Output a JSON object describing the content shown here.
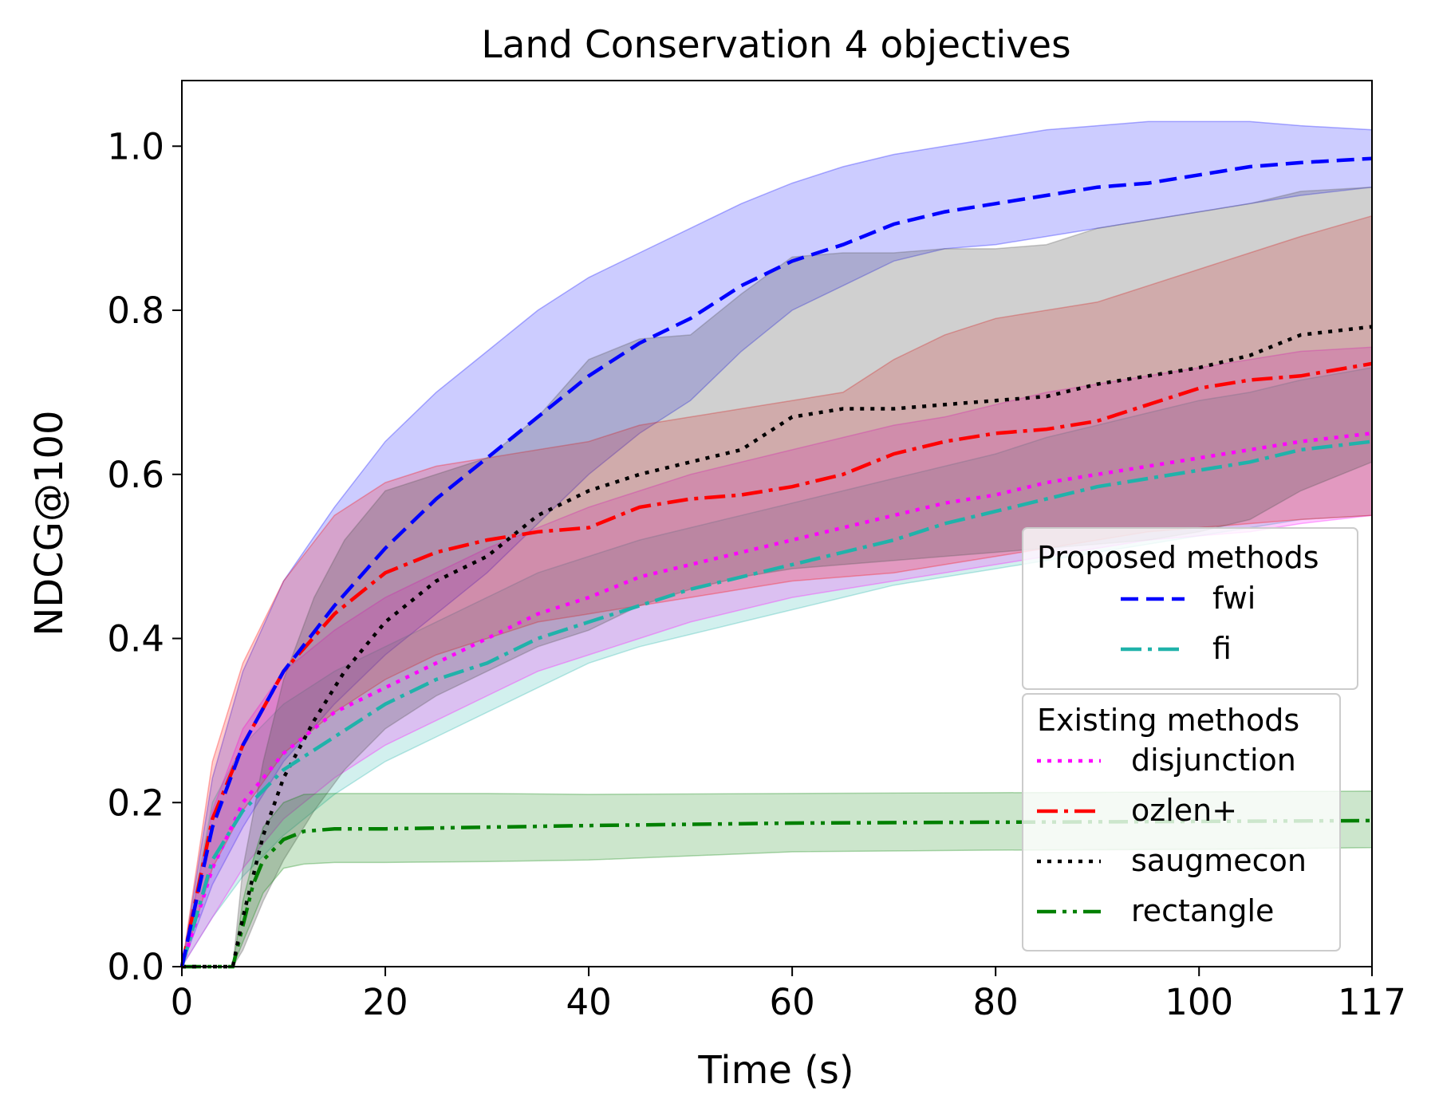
{
  "chart_data": {
    "type": "line",
    "title": "Land Conservation 4 objectives",
    "xlabel": "Time (s)",
    "ylabel": "NDCG@100",
    "xlim": [
      0,
      117
    ],
    "ylim": [
      0,
      1.08
    ],
    "x_ticks": [
      0,
      20,
      40,
      60,
      80,
      100,
      117
    ],
    "y_ticks": [
      0.0,
      0.2,
      0.4,
      0.6,
      0.8,
      1.0
    ],
    "x_tick_labels": [
      "0",
      "20",
      "40",
      "60",
      "80",
      "100",
      "117"
    ],
    "y_tick_labels": [
      "0.0",
      "0.2",
      "0.4",
      "0.6",
      "0.8",
      "1.0"
    ],
    "grid": false,
    "legend_position": "lower-right",
    "legend_groups": [
      {
        "title": "Proposed methods",
        "entries": [
          "fwi",
          "fi"
        ]
      },
      {
        "title": "Existing methods",
        "entries": [
          "disjunction",
          "ozlen+",
          "saugmecon",
          "rectangle"
        ]
      }
    ],
    "series": [
      {
        "name": "fwi",
        "color": "#0000ff",
        "band_color": "#0000ff",
        "band_opacity": 0.2,
        "dash": "dashed",
        "x": [
          0,
          3,
          6,
          10,
          15,
          20,
          25,
          30,
          35,
          40,
          45,
          50,
          55,
          60,
          65,
          70,
          75,
          80,
          85,
          90,
          95,
          100,
          105,
          110,
          117
        ],
        "y": [
          0.0,
          0.17,
          0.27,
          0.36,
          0.44,
          0.51,
          0.57,
          0.62,
          0.67,
          0.72,
          0.76,
          0.79,
          0.83,
          0.86,
          0.88,
          0.905,
          0.92,
          0.93,
          0.94,
          0.95,
          0.955,
          0.965,
          0.975,
          0.98,
          0.985
        ],
        "lower": [
          0.0,
          0.1,
          0.17,
          0.25,
          0.32,
          0.38,
          0.43,
          0.48,
          0.54,
          0.6,
          0.65,
          0.69,
          0.75,
          0.8,
          0.83,
          0.86,
          0.875,
          0.88,
          0.89,
          0.9,
          0.91,
          0.92,
          0.93,
          0.94,
          0.95
        ],
        "upper": [
          0.0,
          0.23,
          0.36,
          0.47,
          0.56,
          0.64,
          0.7,
          0.75,
          0.8,
          0.84,
          0.87,
          0.9,
          0.93,
          0.955,
          0.975,
          0.99,
          1.0,
          1.01,
          1.02,
          1.025,
          1.03,
          1.03,
          1.03,
          1.025,
          1.02
        ]
      },
      {
        "name": "fi",
        "color": "#20b2aa",
        "band_color": "#20b2aa",
        "band_opacity": 0.2,
        "dash": "dashdot",
        "x": [
          0,
          3,
          6,
          10,
          15,
          20,
          25,
          30,
          35,
          40,
          45,
          50,
          55,
          60,
          65,
          70,
          75,
          80,
          85,
          90,
          95,
          100,
          105,
          110,
          117
        ],
        "y": [
          0.0,
          0.13,
          0.19,
          0.24,
          0.28,
          0.32,
          0.35,
          0.37,
          0.4,
          0.42,
          0.44,
          0.46,
          0.475,
          0.49,
          0.505,
          0.52,
          0.54,
          0.555,
          0.57,
          0.585,
          0.595,
          0.605,
          0.615,
          0.63,
          0.64
        ],
        "lower": [
          0.0,
          0.06,
          0.11,
          0.16,
          0.21,
          0.25,
          0.28,
          0.31,
          0.34,
          0.37,
          0.39,
          0.405,
          0.42,
          0.435,
          0.45,
          0.465,
          0.475,
          0.485,
          0.495,
          0.505,
          0.515,
          0.525,
          0.535,
          0.545,
          0.55
        ],
        "upper": [
          0.0,
          0.2,
          0.27,
          0.32,
          0.36,
          0.39,
          0.42,
          0.45,
          0.48,
          0.5,
          0.52,
          0.535,
          0.55,
          0.565,
          0.58,
          0.595,
          0.61,
          0.625,
          0.645,
          0.66,
          0.675,
          0.69,
          0.7,
          0.715,
          0.73
        ]
      },
      {
        "name": "disjunction",
        "color": "#ff00ff",
        "band_color": "#ff00ff",
        "band_opacity": 0.2,
        "dash": "dotted",
        "x": [
          0,
          3,
          6,
          10,
          15,
          20,
          25,
          30,
          35,
          40,
          45,
          50,
          55,
          60,
          65,
          70,
          75,
          80,
          85,
          90,
          95,
          100,
          105,
          110,
          117
        ],
        "y": [
          0.0,
          0.12,
          0.2,
          0.26,
          0.31,
          0.34,
          0.37,
          0.4,
          0.43,
          0.45,
          0.475,
          0.49,
          0.505,
          0.52,
          0.535,
          0.55,
          0.565,
          0.575,
          0.59,
          0.6,
          0.61,
          0.62,
          0.63,
          0.64,
          0.65
        ],
        "lower": [
          0.0,
          0.06,
          0.12,
          0.18,
          0.23,
          0.27,
          0.3,
          0.33,
          0.36,
          0.38,
          0.4,
          0.42,
          0.435,
          0.45,
          0.46,
          0.47,
          0.48,
          0.49,
          0.5,
          0.51,
          0.52,
          0.525,
          0.53,
          0.54,
          0.55
        ],
        "upper": [
          0.0,
          0.19,
          0.29,
          0.36,
          0.41,
          0.45,
          0.48,
          0.51,
          0.535,
          0.56,
          0.58,
          0.6,
          0.615,
          0.63,
          0.645,
          0.66,
          0.67,
          0.685,
          0.7,
          0.71,
          0.72,
          0.73,
          0.74,
          0.75,
          0.755
        ]
      },
      {
        "name": "ozlen+",
        "color": "#ff0000",
        "band_color": "#ff0000",
        "band_opacity": 0.2,
        "dash": "dashdot",
        "x": [
          0,
          3,
          6,
          10,
          15,
          20,
          25,
          30,
          35,
          40,
          45,
          50,
          55,
          60,
          65,
          70,
          75,
          80,
          85,
          90,
          95,
          100,
          105,
          110,
          117
        ],
        "y": [
          0.0,
          0.18,
          0.27,
          0.36,
          0.43,
          0.48,
          0.505,
          0.52,
          0.53,
          0.535,
          0.56,
          0.57,
          0.575,
          0.585,
          0.6,
          0.625,
          0.64,
          0.65,
          0.655,
          0.665,
          0.685,
          0.705,
          0.715,
          0.72,
          0.735
        ],
        "lower": [
          0.0,
          0.12,
          0.19,
          0.26,
          0.31,
          0.35,
          0.38,
          0.4,
          0.42,
          0.43,
          0.44,
          0.45,
          0.46,
          0.47,
          0.475,
          0.48,
          0.49,
          0.5,
          0.51,
          0.52,
          0.53,
          0.535,
          0.54,
          0.545,
          0.55
        ],
        "upper": [
          0.0,
          0.25,
          0.37,
          0.47,
          0.55,
          0.59,
          0.61,
          0.62,
          0.63,
          0.64,
          0.66,
          0.67,
          0.68,
          0.69,
          0.7,
          0.74,
          0.77,
          0.79,
          0.8,
          0.81,
          0.83,
          0.85,
          0.87,
          0.89,
          0.915
        ]
      },
      {
        "name": "saugmecon",
        "color": "#000000",
        "band_color": "#555555",
        "band_opacity": 0.28,
        "dash": "dotted",
        "x": [
          0,
          4,
          5,
          6,
          8,
          10,
          13,
          16,
          20,
          25,
          30,
          35,
          40,
          45,
          50,
          55,
          60,
          65,
          70,
          75,
          80,
          85,
          90,
          95,
          100,
          105,
          110,
          117
        ],
        "y": [
          0.0,
          0.0,
          0.0,
          0.06,
          0.16,
          0.23,
          0.3,
          0.36,
          0.42,
          0.47,
          0.5,
          0.55,
          0.58,
          0.6,
          0.615,
          0.63,
          0.67,
          0.68,
          0.68,
          0.685,
          0.69,
          0.695,
          0.71,
          0.72,
          0.73,
          0.745,
          0.77,
          0.78
        ],
        "lower": [
          0.0,
          0.0,
          0.0,
          0.02,
          0.08,
          0.13,
          0.19,
          0.24,
          0.29,
          0.33,
          0.36,
          0.39,
          0.41,
          0.44,
          0.46,
          0.475,
          0.485,
          0.49,
          0.495,
          0.5,
          0.505,
          0.51,
          0.515,
          0.52,
          0.53,
          0.545,
          0.58,
          0.615
        ],
        "upper": [
          0.0,
          0.0,
          0.0,
          0.12,
          0.25,
          0.35,
          0.45,
          0.52,
          0.58,
          0.6,
          0.62,
          0.67,
          0.74,
          0.765,
          0.77,
          0.82,
          0.865,
          0.87,
          0.87,
          0.875,
          0.875,
          0.88,
          0.9,
          0.91,
          0.92,
          0.93,
          0.945,
          0.95
        ]
      },
      {
        "name": "rectangle",
        "color": "#008000",
        "band_color": "#008000",
        "band_opacity": 0.2,
        "dash": "dashdotdot",
        "x": [
          0,
          4,
          5,
          6,
          7,
          8,
          10,
          12,
          15,
          20,
          30,
          40,
          60,
          80,
          100,
          117
        ],
        "y": [
          0.0,
          0.0,
          0.0,
          0.05,
          0.1,
          0.13,
          0.155,
          0.165,
          0.168,
          0.168,
          0.17,
          0.172,
          0.175,
          0.176,
          0.177,
          0.178
        ],
        "lower": [
          0.0,
          0.0,
          0.0,
          0.03,
          0.06,
          0.09,
          0.12,
          0.125,
          0.127,
          0.127,
          0.128,
          0.13,
          0.14,
          0.142,
          0.143,
          0.145
        ],
        "upper": [
          0.0,
          0.0,
          0.0,
          0.08,
          0.13,
          0.17,
          0.2,
          0.21,
          0.211,
          0.211,
          0.211,
          0.21,
          0.211,
          0.212,
          0.213,
          0.214
        ]
      }
    ]
  }
}
